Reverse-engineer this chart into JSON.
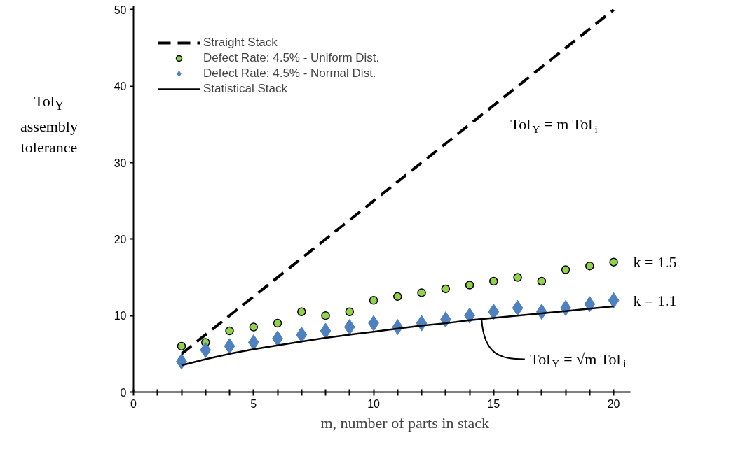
{
  "chart_data": {
    "type": "scatter",
    "xlabel": "m,  number of parts in stack",
    "ylabel": "Tol$_{Y}$\nassembly\ntolerance",
    "xlim": [
      0,
      20.7
    ],
    "ylim": [
      0,
      50.5
    ],
    "xticks": [
      0,
      {
        "value": 1,
        "label": null
      },
      {
        "value": 2,
        "label": null
      },
      {
        "value": 3,
        "label": null
      },
      {
        "value": 4,
        "label": null
      },
      5,
      {
        "value": 6,
        "label": null
      },
      {
        "value": 7,
        "label": null
      },
      {
        "value": 8,
        "label": null
      },
      {
        "value": 9,
        "label": null
      },
      10,
      {
        "value": 11,
        "label": null
      },
      {
        "value": 12,
        "label": null
      },
      {
        "value": 13,
        "label": null
      },
      {
        "value": 14,
        "label": null
      },
      15,
      {
        "value": 16,
        "label": null
      },
      {
        "value": 17,
        "label": null
      },
      {
        "value": 18,
        "label": null
      },
      {
        "value": 19,
        "label": null
      },
      20
    ],
    "yticks": [
      0,
      10,
      20,
      30,
      40,
      50
    ],
    "grid": false,
    "legend": "top left",
    "series": [
      {
        "name": "Straight Stack",
        "type": "line",
        "line_style": "dashed",
        "color": "#000000",
        "x": [
          2,
          20
        ],
        "values": [
          5,
          50
        ]
      },
      {
        "name": "Defect Rate: 4.5% - Uniform Dist.",
        "marker": "circle",
        "color": "#92d050",
        "x": [
          2,
          3,
          4,
          5,
          6,
          7,
          8,
          9,
          10,
          11,
          12,
          13,
          14,
          15,
          16,
          17,
          18,
          19,
          20
        ],
        "values": [
          6,
          6.5,
          8,
          8.5,
          9,
          10.5,
          10,
          10.5,
          12,
          12.5,
          13,
          13.5,
          14,
          14.5,
          15,
          14.5,
          16,
          16.5,
          17
        ]
      },
      {
        "name": "Defect Rate: 4.5% - Normal Dist.",
        "marker": "diamond",
        "color": "#4f81bd",
        "x": [
          2,
          3,
          4,
          5,
          6,
          7,
          8,
          9,
          10,
          11,
          12,
          13,
          14,
          15,
          16,
          17,
          18,
          19,
          20
        ],
        "values": [
          4,
          5.5,
          6,
          6.5,
          7,
          7.5,
          8,
          8.5,
          9,
          8.5,
          9,
          9.5,
          10,
          10.5,
          11,
          10.5,
          11,
          11.5,
          12
        ]
      },
      {
        "name": "Statistical Stack",
        "type": "line",
        "line_style": "solid",
        "color": "#000000",
        "x": [
          2,
          3,
          4,
          5,
          6,
          7,
          8,
          9,
          10,
          11,
          12,
          13,
          14,
          15,
          16,
          17,
          18,
          19,
          20
        ],
        "values": [
          3.5,
          4.3,
          5,
          5.6,
          6.1,
          6.6,
          7.1,
          7.5,
          7.9,
          8.3,
          8.7,
          9,
          9.4,
          9.7,
          10,
          10.3,
          10.6,
          10.9,
          11.2
        ]
      }
    ],
    "annotations": [
      "Tol$_{Y}$ = m Tol$_{i}$",
      "k = 1.5",
      "k = 1.1",
      {
        "text": "Tol$_{Y}$ = √m Tol$_{i}$",
        "x": 14.5,
        "y": 9.5
      }
    ]
  }
}
